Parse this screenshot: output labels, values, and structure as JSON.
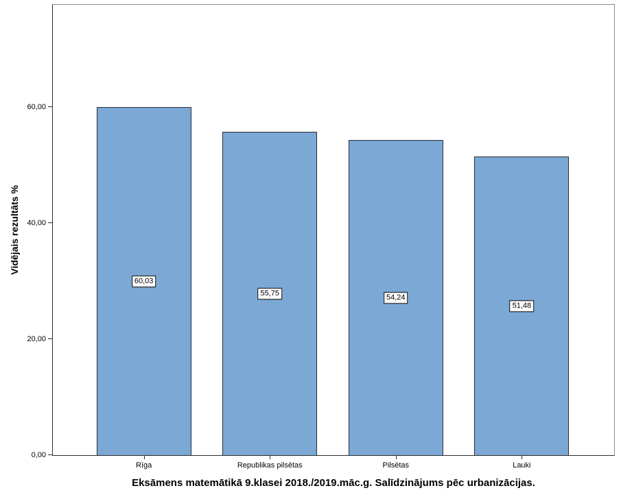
{
  "chart_data": {
    "type": "bar",
    "title": "Eksāmens matemātikā 9.klasei 2018./2019.māc.g. Salīdzinājums pēc urbanizācijas.",
    "ylabel": "Vidējais rezultāts %",
    "xlabel": "",
    "categories": [
      "Rīga",
      "Republikas pilsētas",
      "Pilsētas",
      "Lauki"
    ],
    "values": [
      60.03,
      55.75,
      54.24,
      51.48
    ],
    "value_labels": [
      "60,03",
      "55,75",
      "54,24",
      "51,48"
    ],
    "y_ticks": [
      {
        "value": 0,
        "label": "0,00"
      },
      {
        "value": 20,
        "label": "20,00"
      },
      {
        "value": 40,
        "label": "40,00"
      },
      {
        "value": 60,
        "label": "60,00"
      }
    ],
    "ylim": [
      0,
      77.6
    ],
    "grid": false,
    "legend": false,
    "bar_color": "#7ba8d5",
    "bar_border_color": "#272c33",
    "value_box_bg": "#ffffff",
    "value_box_border": "#000000"
  }
}
